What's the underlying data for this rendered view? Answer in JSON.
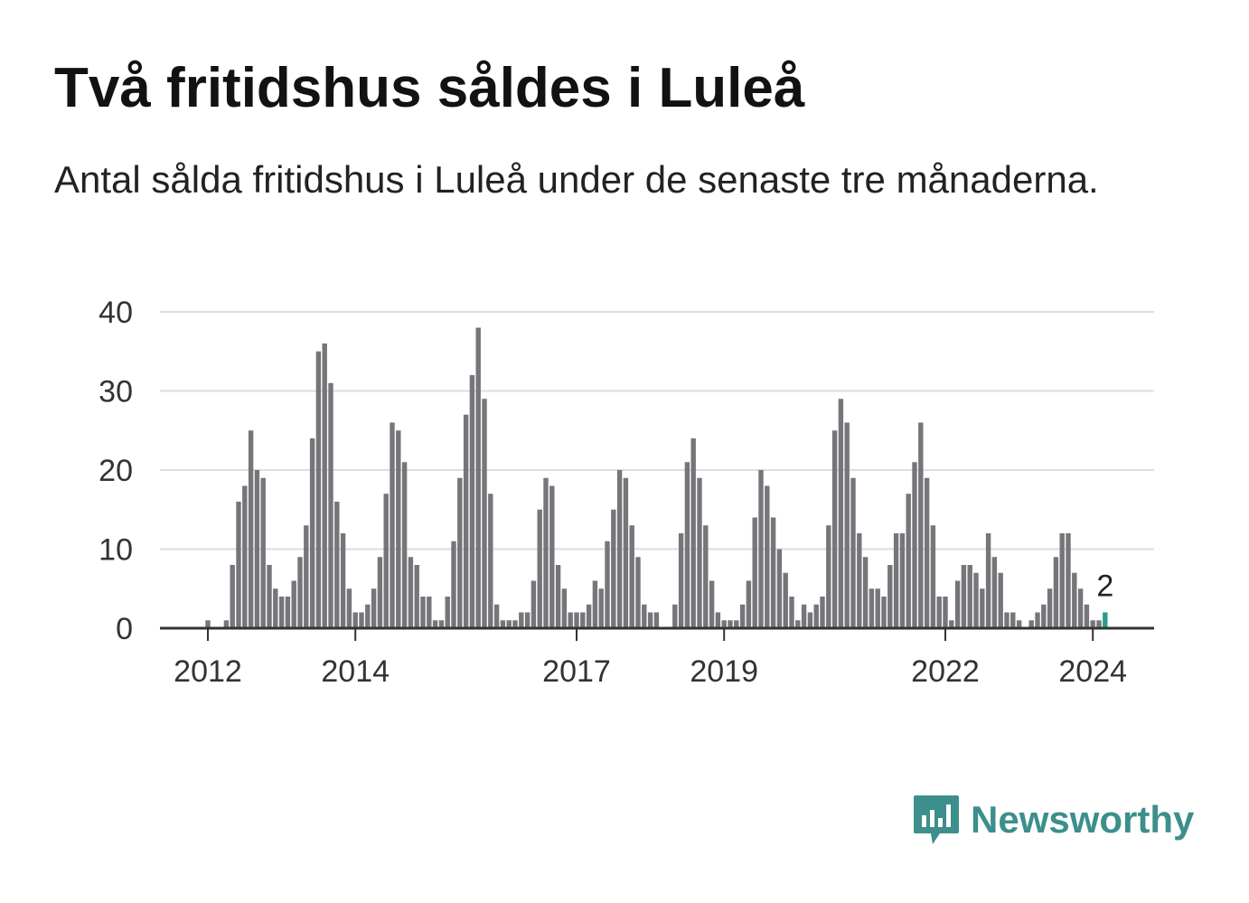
{
  "title": "Två fritidshus såldes i Luleå",
  "subtitle": "Antal sålda fritidshus i Luleå under de senaste tre månaderna.",
  "brand": {
    "name": "Newsworthy",
    "logo_icon": "bar-chart-speech-bubble-icon",
    "color": "#3c8f8a"
  },
  "colors": {
    "bar": "#76757a",
    "highlight": "#2a9d8f",
    "grid": "#dddddd",
    "axis": "#333333",
    "tick_text": "#333333"
  },
  "chart_data": {
    "type": "bar",
    "title": "Två fritidshus såldes i Luleå",
    "subtitle": "Antal sålda fritidshus i Luleå under de senaste tre månaderna.",
    "xlabel": "",
    "ylabel": "",
    "ylim": [
      0,
      40
    ],
    "yticks": [
      0,
      10,
      20,
      30,
      40
    ],
    "grid": true,
    "frequency": "monthly",
    "start": "2011-04",
    "x_ticks": [
      {
        "label": "2012",
        "index": 8
      },
      {
        "label": "2014",
        "index": 32
      },
      {
        "label": "2017",
        "index": 68
      },
      {
        "label": "2019",
        "index": 92
      },
      {
        "label": "2022",
        "index": 128
      },
      {
        "label": "2024",
        "index": 152
      }
    ],
    "values": [
      0,
      0,
      0,
      0,
      0,
      0,
      0,
      0,
      1,
      0,
      0,
      1,
      8,
      16,
      18,
      25,
      20,
      19,
      8,
      5,
      4,
      4,
      6,
      9,
      13,
      24,
      35,
      36,
      31,
      16,
      12,
      5,
      2,
      2,
      3,
      5,
      9,
      17,
      26,
      25,
      21,
      9,
      8,
      4,
      4,
      1,
      1,
      4,
      11,
      19,
      27,
      32,
      38,
      29,
      17,
      3,
      1,
      1,
      1,
      2,
      2,
      6,
      15,
      19,
      18,
      8,
      5,
      2,
      2,
      2,
      3,
      6,
      5,
      11,
      15,
      20,
      19,
      13,
      9,
      3,
      2,
      2,
      0,
      0,
      3,
      12,
      21,
      24,
      19,
      13,
      6,
      2,
      1,
      1,
      1,
      3,
      6,
      14,
      20,
      18,
      14,
      10,
      7,
      4,
      1,
      3,
      2,
      3,
      4,
      13,
      25,
      29,
      26,
      19,
      12,
      9,
      5,
      5,
      4,
      8,
      12,
      12,
      17,
      21,
      26,
      19,
      13,
      4,
      4,
      1,
      6,
      8,
      8,
      7,
      5,
      12,
      9,
      7,
      2,
      2,
      1,
      0,
      1,
      2,
      3,
      5,
      9,
      12,
      12,
      7,
      5,
      3,
      1,
      1,
      2
    ],
    "highlight_index": 154,
    "annotation": {
      "index": 154,
      "text": "2"
    }
  }
}
